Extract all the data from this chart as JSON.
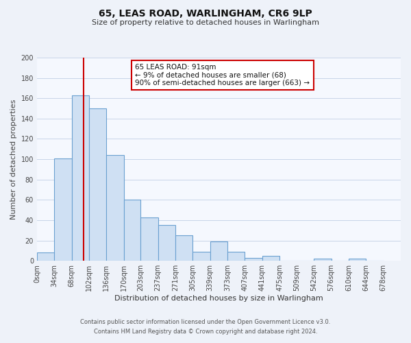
{
  "title": "65, LEAS ROAD, WARLINGHAM, CR6 9LP",
  "subtitle": "Size of property relative to detached houses in Warlingham",
  "xlabel": "Distribution of detached houses by size in Warlingham",
  "ylabel": "Number of detached properties",
  "footer1": "Contains HM Land Registry data © Crown copyright and database right 2024.",
  "footer2": "Contains public sector information licensed under the Open Government Licence v3.0.",
  "annotation_title": "65 LEAS ROAD: 91sqm",
  "annotation_line1": "← 9% of detached houses are smaller (68)",
  "annotation_line2": "90% of semi-detached houses are larger (663) →",
  "bar_left_edges": [
    0,
    34,
    68,
    102,
    136,
    170,
    203,
    237,
    271,
    305,
    339,
    373,
    407,
    441,
    475,
    509,
    542,
    576,
    610,
    644
  ],
  "bar_widths": [
    34,
    34,
    34,
    34,
    34,
    33,
    34,
    34,
    34,
    34,
    34,
    34,
    34,
    34,
    34,
    33,
    34,
    34,
    34,
    34
  ],
  "bar_heights": [
    8,
    101,
    163,
    150,
    104,
    60,
    43,
    35,
    25,
    9,
    19,
    9,
    3,
    5,
    0,
    0,
    2,
    0,
    2,
    0
  ],
  "bar_color": "#cfe0f3",
  "bar_edge_color": "#6aa0d0",
  "vline_x": 91,
  "vline_color": "#cc0000",
  "ylim": [
    0,
    200
  ],
  "yticks": [
    0,
    20,
    40,
    60,
    80,
    100,
    120,
    140,
    160,
    180,
    200
  ],
  "xtick_labels": [
    "0sqm",
    "34sqm",
    "68sqm",
    "102sqm",
    "136sqm",
    "170sqm",
    "203sqm",
    "237sqm",
    "271sqm",
    "305sqm",
    "339sqm",
    "373sqm",
    "407sqm",
    "441sqm",
    "475sqm",
    "509sqm",
    "542sqm",
    "576sqm",
    "610sqm",
    "644sqm",
    "678sqm"
  ],
  "xtick_positions": [
    0,
    34,
    68,
    102,
    136,
    170,
    203,
    237,
    271,
    305,
    339,
    373,
    407,
    441,
    475,
    509,
    542,
    576,
    610,
    644,
    678
  ],
  "background_color": "#eef2f9",
  "plot_bg_color": "#f5f8fe",
  "grid_color": "#c8d4e8",
  "title_fontsize": 10,
  "subtitle_fontsize": 8,
  "ylabel_fontsize": 8,
  "xlabel_fontsize": 8,
  "tick_fontsize": 7,
  "footer_fontsize": 6
}
